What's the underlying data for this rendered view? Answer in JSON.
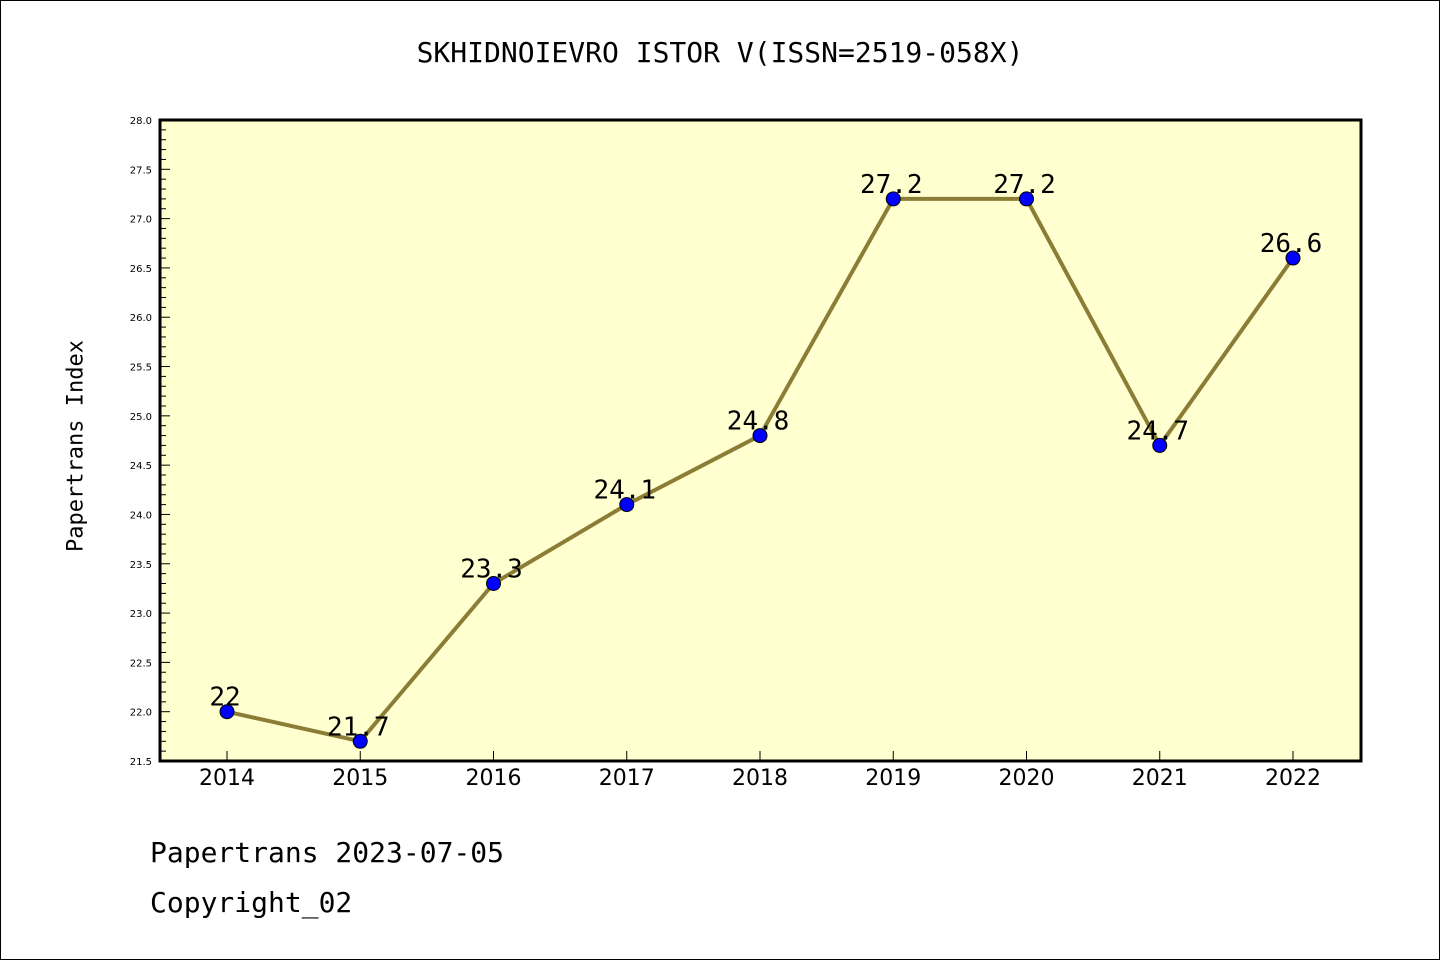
{
  "chart_data": {
    "type": "line",
    "title": "SKHIDNOIEVRO ISTOR V(ISSN=2519-058X)",
    "xlabel": "",
    "ylabel": "Papertrans Index",
    "x": [
      "2014",
      "2015",
      "2016",
      "2017",
      "2018",
      "2019",
      "2020",
      "2021",
      "2022"
    ],
    "series": [
      {
        "values": [
          22,
          21.7,
          23.3,
          24.1,
          24.8,
          27.2,
          27.2,
          24.7,
          26.6
        ],
        "labels": [
          "22",
          "21.7",
          "23.3",
          "24.1",
          "24.8",
          "27.2",
          "27.2",
          "24.7",
          "26.6"
        ],
        "line_color": "#8b7d35",
        "marker_color": "#0000ff"
      }
    ],
    "ylim": [
      21.5,
      28.0
    ],
    "yticks": [
      "21.5",
      "22.0",
      "22.5",
      "23.0",
      "23.5",
      "24.0",
      "24.5",
      "25.0",
      "25.5",
      "26.0",
      "26.5",
      "27.0",
      "27.5",
      "28.0"
    ],
    "plot_background": "#ffffd0",
    "grid": false
  },
  "footer": {
    "line1": "Papertrans 2023-07-05",
    "line2": "Copyright_02"
  }
}
